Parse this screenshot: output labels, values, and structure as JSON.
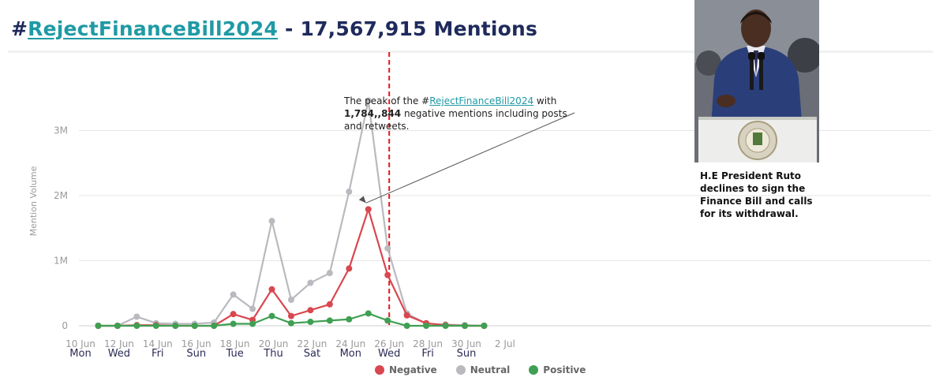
{
  "header": {
    "title_prefix": "#",
    "title_hashtag": "RejectFinanceBill2024",
    "title_suffix": " - 17,567,915 Mentions"
  },
  "annotations": {
    "peak_line1_pre": "The peak of the #",
    "peak_hashtag": "RejectFinanceBill2024",
    "peak_line1_post": " with",
    "peak_bold": "1,784,,844",
    "peak_rest": " negative mentions including posts and retweets.",
    "ruto": "H.E President Ruto declines to sign the Finance Bill and calls for its withdrawal."
  },
  "colors": {
    "negative": "#d9474f",
    "neutral": "#b9b9bf",
    "positive": "#3f9f52",
    "event_line": "#e0161d",
    "grid": "#e6e6e6",
    "axis_text": "#9a9a9a",
    "day_text": "#2a2a55"
  },
  "chart_data": {
    "type": "line",
    "xlabel": "",
    "ylabel": "Mention Volume",
    "ylim": [
      0,
      3500000
    ],
    "y_ticks": [
      {
        "value": 0,
        "label": "0"
      },
      {
        "value": 1000000,
        "label": "1M"
      },
      {
        "value": 2000000,
        "label": "2M"
      },
      {
        "value": 3000000,
        "label": "3M"
      }
    ],
    "x_dates": [
      "11 Jun",
      "12 Jun",
      "13 Jun",
      "14 Jun",
      "15 Jun",
      "16 Jun",
      "17 Jun",
      "18 Jun",
      "19 Jun",
      "20 Jun",
      "21 Jun",
      "22 Jun",
      "23 Jun",
      "24 Jun",
      "25 Jun",
      "26 Jun",
      "27 Jun",
      "28 Jun",
      "29 Jun",
      "30 Jun",
      "1 Jul"
    ],
    "x_tick_labels": [
      {
        "date": "10 Jun",
        "label": "10 Jun",
        "day": "Mon"
      },
      {
        "date": "12 Jun",
        "label": "12 Jun",
        "day": "Wed"
      },
      {
        "date": "14 Jun",
        "label": "14 Jun",
        "day": "Fri"
      },
      {
        "date": "16 Jun",
        "label": "16 Jun",
        "day": "Sun"
      },
      {
        "date": "18 Jun",
        "label": "18 Jun",
        "day": "Tue"
      },
      {
        "date": "20 Jun",
        "label": "20 Jun",
        "day": "Thu"
      },
      {
        "date": "22 Jun",
        "label": "22 Jun",
        "day": "Sat"
      },
      {
        "date": "24 Jun",
        "label": "24 Jun",
        "day": "Mon"
      },
      {
        "date": "26 Jun",
        "label": "26 Jun",
        "day": "Wed"
      },
      {
        "date": "28 Jun",
        "label": "28 Jun",
        "day": "Fri"
      },
      {
        "date": "30 Jun",
        "label": "30 Jun",
        "day": "Sun"
      },
      {
        "date": "2 Jul",
        "label": "2 Jul",
        "day": ""
      }
    ],
    "series": [
      {
        "name": "Neutral",
        "color_key": "neutral",
        "values": [
          0,
          0,
          140000,
          40000,
          30000,
          30000,
          50000,
          480000,
          260000,
          1610000,
          400000,
          660000,
          810000,
          2060000,
          3460000,
          1190000,
          190000,
          30000,
          20000,
          10000,
          0
        ]
      },
      {
        "name": "Negative",
        "color_key": "negative",
        "values": [
          0,
          0,
          10000,
          10000,
          0,
          0,
          0,
          180000,
          90000,
          560000,
          150000,
          240000,
          330000,
          880000,
          1790000,
          780000,
          160000,
          40000,
          10000,
          0,
          0
        ]
      },
      {
        "name": "Positive",
        "color_key": "positive",
        "values": [
          0,
          0,
          0,
          0,
          0,
          0,
          0,
          30000,
          30000,
          150000,
          40000,
          60000,
          80000,
          100000,
          190000,
          80000,
          0,
          0,
          0,
          0,
          0
        ]
      }
    ],
    "legend": [
      "Negative",
      "Neutral",
      "Positive"
    ],
    "legend_position": "bottom-center",
    "grid": true,
    "event_marker_date": "26 Jun"
  }
}
